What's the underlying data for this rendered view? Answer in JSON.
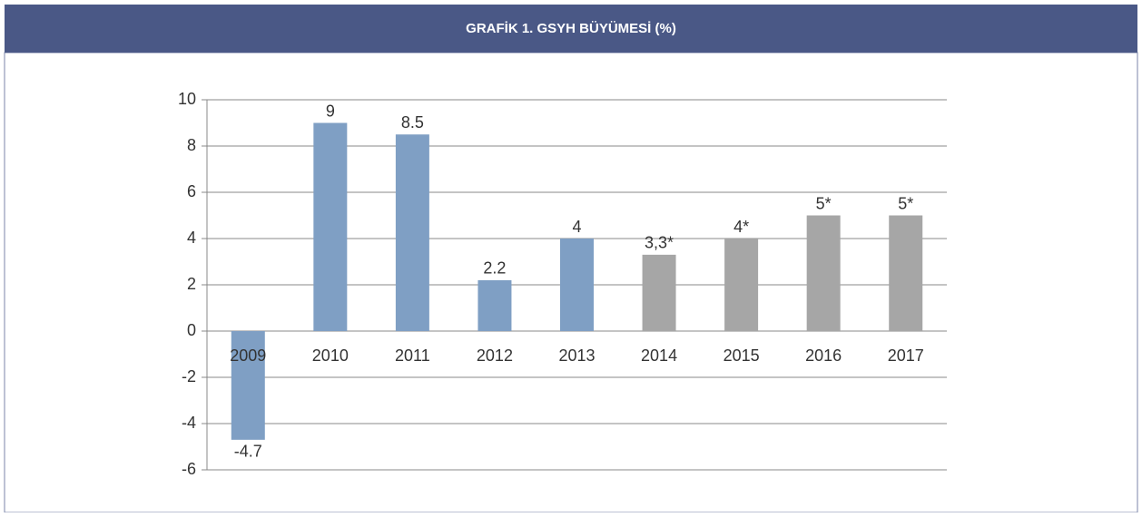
{
  "chart_data": {
    "type": "bar",
    "title": "GRAFİK 1. GSYH BÜYÜMESİ (%)",
    "categories": [
      "2009",
      "2010",
      "2011",
      "2012",
      "2013",
      "2014",
      "2015",
      "2016",
      "2017"
    ],
    "values": [
      -4.7,
      9,
      8.5,
      2.2,
      4,
      3.3,
      4,
      5,
      5
    ],
    "value_labels": [
      "-4.7",
      "9",
      "8.5",
      "2.2",
      "4",
      "3,3*",
      "4*",
      "5*",
      "5*"
    ],
    "colors": [
      "#7f9fc4",
      "#7f9fc4",
      "#7f9fc4",
      "#7f9fc4",
      "#7f9fc4",
      "#a6a6a6",
      "#a6a6a6",
      "#a6a6a6",
      "#a6a6a6"
    ],
    "ylim": [
      -6,
      10
    ],
    "yticks": [
      -6,
      -4,
      -2,
      0,
      2,
      4,
      6,
      8,
      10
    ],
    "grid": true
  }
}
